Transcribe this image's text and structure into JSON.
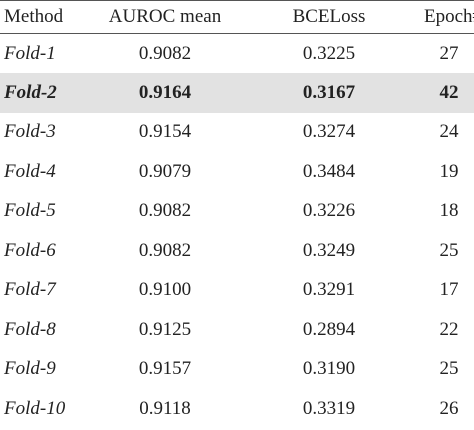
{
  "table": {
    "header": [
      "Method",
      "AUROC mean",
      "BCELoss",
      "Epoch#"
    ],
    "rows": [
      [
        "Fold-1",
        "0.9082",
        "0.3225",
        "27"
      ],
      [
        "Fold-2",
        "0.9164",
        "0.3167",
        "42"
      ],
      [
        "Fold-3",
        "0.9154",
        "0.3274",
        "24"
      ],
      [
        "Fold-4",
        "0.9079",
        "0.3484",
        "19"
      ],
      [
        "Fold-5",
        "0.9082",
        "0.3226",
        "18"
      ],
      [
        "Fold-6",
        "0.9082",
        "0.3249",
        "25"
      ],
      [
        "Fold-7",
        "0.9100",
        "0.3291",
        "17"
      ],
      [
        "Fold-8",
        "0.9125",
        "0.2894",
        "22"
      ],
      [
        "Fold-9",
        "0.9157",
        "0.3190",
        "25"
      ],
      [
        "Fold-10",
        "0.9118",
        "0.3319",
        "26"
      ]
    ]
  }
}
